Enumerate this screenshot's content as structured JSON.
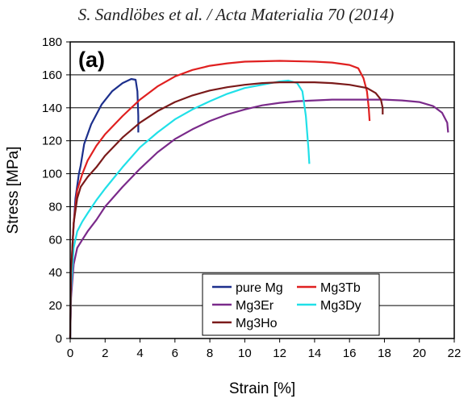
{
  "citation": "S. Sandlöbes et al. / Acta Materialia 70 (2014)",
  "chart_data": {
    "type": "line",
    "panel_label": "(a)",
    "xlabel": "Strain [%]",
    "ylabel": "Stress [MPa]",
    "xlim": [
      0,
      22
    ],
    "ylim": [
      0,
      180
    ],
    "x_ticks": [
      0,
      2,
      4,
      6,
      8,
      10,
      12,
      14,
      16,
      18,
      20,
      22
    ],
    "y_ticks": [
      0,
      20,
      40,
      60,
      80,
      100,
      120,
      140,
      160,
      180
    ],
    "grid": "horizontal",
    "legend_position": "bottom-right",
    "series": [
      {
        "name": "pure Mg",
        "color": "#1c2f8c",
        "x": [
          0,
          0.05,
          0.15,
          0.3,
          0.5,
          0.6,
          0.8,
          1.2,
          1.8,
          2.4,
          3.0,
          3.5,
          3.75,
          3.85,
          3.9,
          3.9
        ],
        "y": [
          0,
          30,
          60,
          85,
          100,
          105,
          118,
          130,
          142,
          150,
          155,
          157.5,
          157,
          150,
          135,
          125
        ]
      },
      {
        "name": "Mg3Tb",
        "color": "#e02020",
        "x": [
          0,
          0.05,
          0.2,
          0.4,
          0.7,
          1.0,
          1.5,
          2.0,
          3.0,
          4.0,
          5.0,
          6.0,
          7.0,
          8.0,
          9.0,
          10.0,
          12.0,
          14.0,
          15.0,
          16.0,
          16.5,
          16.8,
          17.0,
          17.1,
          17.15
        ],
        "y": [
          0,
          40,
          70,
          90,
          100,
          108,
          117,
          124,
          135,
          145,
          153,
          159,
          163,
          165.5,
          167,
          168,
          168.5,
          168,
          167.5,
          166,
          164,
          158,
          150,
          140,
          132
        ]
      },
      {
        "name": "Mg3Er",
        "color": "#7a2a8a",
        "x": [
          0,
          0.05,
          0.2,
          0.4,
          0.7,
          1.0,
          1.5,
          2.0,
          3.0,
          4.0,
          5.0,
          6.0,
          7.0,
          8.0,
          9.0,
          10.0,
          11.0,
          12.0,
          13.0,
          14.0,
          15.0,
          16.0,
          17.0,
          18.0,
          19.0,
          20.0,
          20.8,
          21.3,
          21.6,
          21.65
        ],
        "y": [
          0,
          25,
          45,
          55,
          60,
          65,
          72,
          80,
          92,
          103,
          113,
          121,
          127,
          132,
          136,
          139,
          141.5,
          143,
          144,
          144.5,
          145,
          145,
          145,
          145,
          144.5,
          143.5,
          141,
          137,
          131,
          125
        ]
      },
      {
        "name": "Mg3Dy",
        "color": "#20e0e8",
        "x": [
          0,
          0.05,
          0.2,
          0.4,
          0.7,
          1.0,
          1.5,
          2.0,
          3.0,
          4.0,
          5.0,
          6.0,
          7.0,
          8.0,
          9.0,
          10.0,
          11.0,
          12.0,
          12.5,
          13.0,
          13.3,
          13.5,
          13.65,
          13.7
        ],
        "y": [
          0,
          30,
          55,
          65,
          71,
          76,
          84,
          91,
          104,
          116,
          125,
          133,
          139,
          144,
          148.5,
          152,
          154,
          156,
          156.5,
          155,
          150,
          135,
          115,
          106
        ]
      },
      {
        "name": "Mg3Ho",
        "color": "#7a1a1a",
        "x": [
          0,
          0.05,
          0.2,
          0.4,
          0.6,
          1.0,
          1.5,
          2.0,
          3.0,
          4.0,
          5.0,
          6.0,
          7.0,
          8.0,
          9.0,
          10.0,
          11.0,
          12.0,
          13.0,
          14.0,
          15.0,
          16.0,
          17.0,
          17.5,
          17.8,
          17.9,
          17.9
        ],
        "y": [
          0,
          40,
          70,
          85,
          92,
          98,
          104,
          111,
          122,
          131,
          138,
          143.5,
          147.5,
          150.5,
          152.5,
          154,
          155,
          155.5,
          155.5,
          155.5,
          155,
          154,
          152,
          149,
          145,
          140,
          136
        ]
      }
    ]
  }
}
